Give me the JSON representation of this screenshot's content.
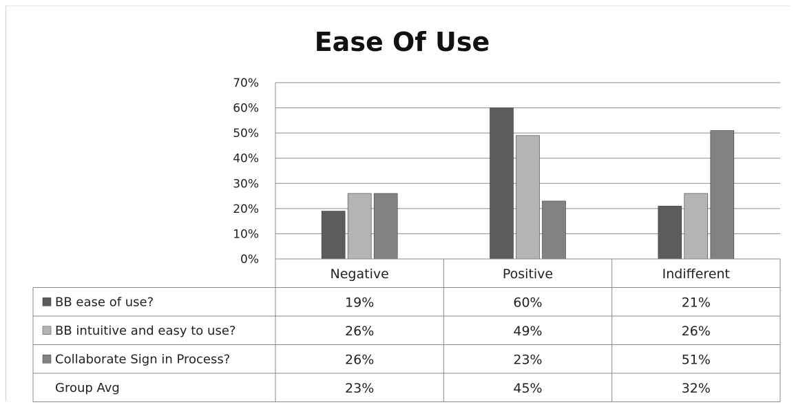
{
  "chart_data": {
    "type": "bar",
    "title": "Ease Of Use",
    "xlabel": "",
    "ylabel": "",
    "categories": [
      "Negative",
      "Positive",
      "Indifferent"
    ],
    "series": [
      {
        "name": "BB ease of use?",
        "values": [
          19,
          60,
          21
        ],
        "labels": [
          "19%",
          "60%",
          "21%"
        ],
        "color": "#5c5c5c"
      },
      {
        "name": "BB intuitive and easy to use?",
        "values": [
          26,
          49,
          26
        ],
        "labels": [
          "26%",
          "49%",
          "26%"
        ],
        "color": "#b4b4b4"
      },
      {
        "name": "Collaborate Sign in Process?",
        "values": [
          26,
          23,
          51
        ],
        "labels": [
          "26%",
          "23%",
          "51%"
        ],
        "color": "#828282"
      }
    ],
    "table_rows": [
      {
        "name": "Group Avg",
        "labels": [
          "23%",
          "45%",
          "32%"
        ]
      }
    ],
    "ylim": [
      0,
      70
    ],
    "y_ticks": [
      "0%",
      "10%",
      "20%",
      "30%",
      "40%",
      "50%",
      "60%",
      "70%"
    ],
    "grid": true,
    "legend": "data-table"
  }
}
